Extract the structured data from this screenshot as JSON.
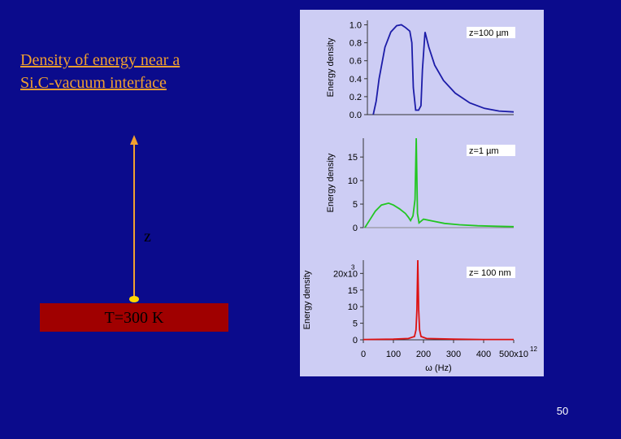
{
  "slide": {
    "title": [
      "Density of energy near a",
      "Si.C-vacuum interface"
    ],
    "z_label": "z",
    "surface_label": "T=300 K",
    "page_number": "50"
  },
  "chart_data": [
    {
      "type": "line",
      "annotation": "z=100  µm",
      "y_label": "Energy density",
      "color": "#1c1ca8",
      "x": [
        20,
        30,
        40,
        60,
        80,
        100,
        116,
        130,
        145,
        152,
        157,
        165,
        175,
        183,
        188,
        197,
        210,
        230,
        260,
        300,
        350,
        400,
        450,
        500
      ],
      "values": [
        0,
        0.15,
        0.4,
        0.75,
        0.92,
        0.99,
        1.0,
        0.97,
        0.93,
        0.8,
        0.3,
        0.05,
        0.05,
        0.1,
        0.5,
        0.92,
        0.75,
        0.55,
        0.38,
        0.24,
        0.13,
        0.07,
        0.04,
        0.03
      ],
      "xlim": [
        0,
        500
      ],
      "ylim": [
        0,
        1.05
      ],
      "yticks": [
        {
          "value": 0,
          "label": "0.0"
        },
        0.2,
        0.4,
        0.6,
        0.8,
        {
          "value": 1,
          "label": "1.0"
        }
      ]
    },
    {
      "type": "line",
      "annotation": "z=1  µm",
      "y_label": "Energy density",
      "color": "#22c622",
      "x": [
        5,
        20,
        40,
        60,
        84,
        100,
        120,
        140,
        150,
        157,
        165,
        172,
        176,
        180,
        185,
        200,
        230,
        270,
        320,
        380,
        440,
        500
      ],
      "values": [
        0,
        1.5,
        3.5,
        4.8,
        5.2,
        4.8,
        4,
        3,
        2.2,
        1.5,
        2.5,
        6,
        19,
        3,
        1,
        1.8,
        1.4,
        0.9,
        0.6,
        0.4,
        0.3,
        0.2
      ],
      "xlim": [
        0,
        500
      ],
      "ylim": [
        0,
        19
      ],
      "yticks": [
        0,
        5,
        10,
        15
      ]
    },
    {
      "type": "line",
      "annotation": "z= 100 nm",
      "y_label": "Energy density",
      "x_label": "ω (Hz)",
      "color": "#dd1111",
      "x": [
        0,
        100,
        150,
        170,
        175,
        178,
        181,
        184,
        187,
        192,
        210,
        300,
        400,
        500
      ],
      "values": [
        0.1,
        0.2,
        0.4,
        1,
        3,
        9,
        24,
        9,
        3,
        1,
        0.4,
        0.2,
        0.1,
        0.1
      ],
      "xlim": [
        0,
        500
      ],
      "ylim": [
        0,
        24
      ],
      "yticks": [
        0,
        5,
        10,
        15,
        {
          "value": 20,
          "label": "20x10"
        }
      ],
      "y_exponent": "3",
      "xticks": [
        0,
        100,
        200,
        300,
        400,
        {
          "value": 500,
          "label": "500x10"
        }
      ],
      "x_exponent": "12"
    }
  ]
}
